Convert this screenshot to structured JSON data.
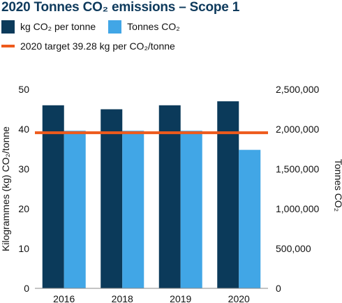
{
  "colors": {
    "primary": "#0b3a5a",
    "secondary": "#41a6e6",
    "target": "#ee5a1c",
    "title": "#0e3a5c"
  },
  "chart_data": {
    "type": "bar",
    "title": "2020 Tonnes CO₂ emissions – Scope 1",
    "categories": [
      "2016",
      "2018",
      "2019",
      "2020"
    ],
    "series": [
      {
        "name": "kg CO₂ per tonne",
        "axis": "left",
        "values": [
          46,
          45,
          46,
          47
        ]
      },
      {
        "name": "Tonnes CO₂",
        "axis": "right",
        "values": [
          1980000,
          1980000,
          1980000,
          1740000
        ]
      }
    ],
    "target": {
      "name": "2020 target 39.28 kg per CO₂/tonne",
      "value": 39.28
    },
    "y_left": {
      "label": "Kilogrammes (kg) CO₂/tonne",
      "ylim": [
        0,
        50
      ],
      "ticks": [
        "0",
        "10",
        "20",
        "30",
        "40",
        "50"
      ]
    },
    "y_right": {
      "label": "Tonnes CO₂",
      "ylim": [
        0,
        2500000
      ],
      "ticks": [
        "0",
        "500,000",
        "1,000,000",
        "1,500,000",
        "2,000,000",
        "2,500,000"
      ]
    },
    "grid": false,
    "legend": "top-left"
  }
}
